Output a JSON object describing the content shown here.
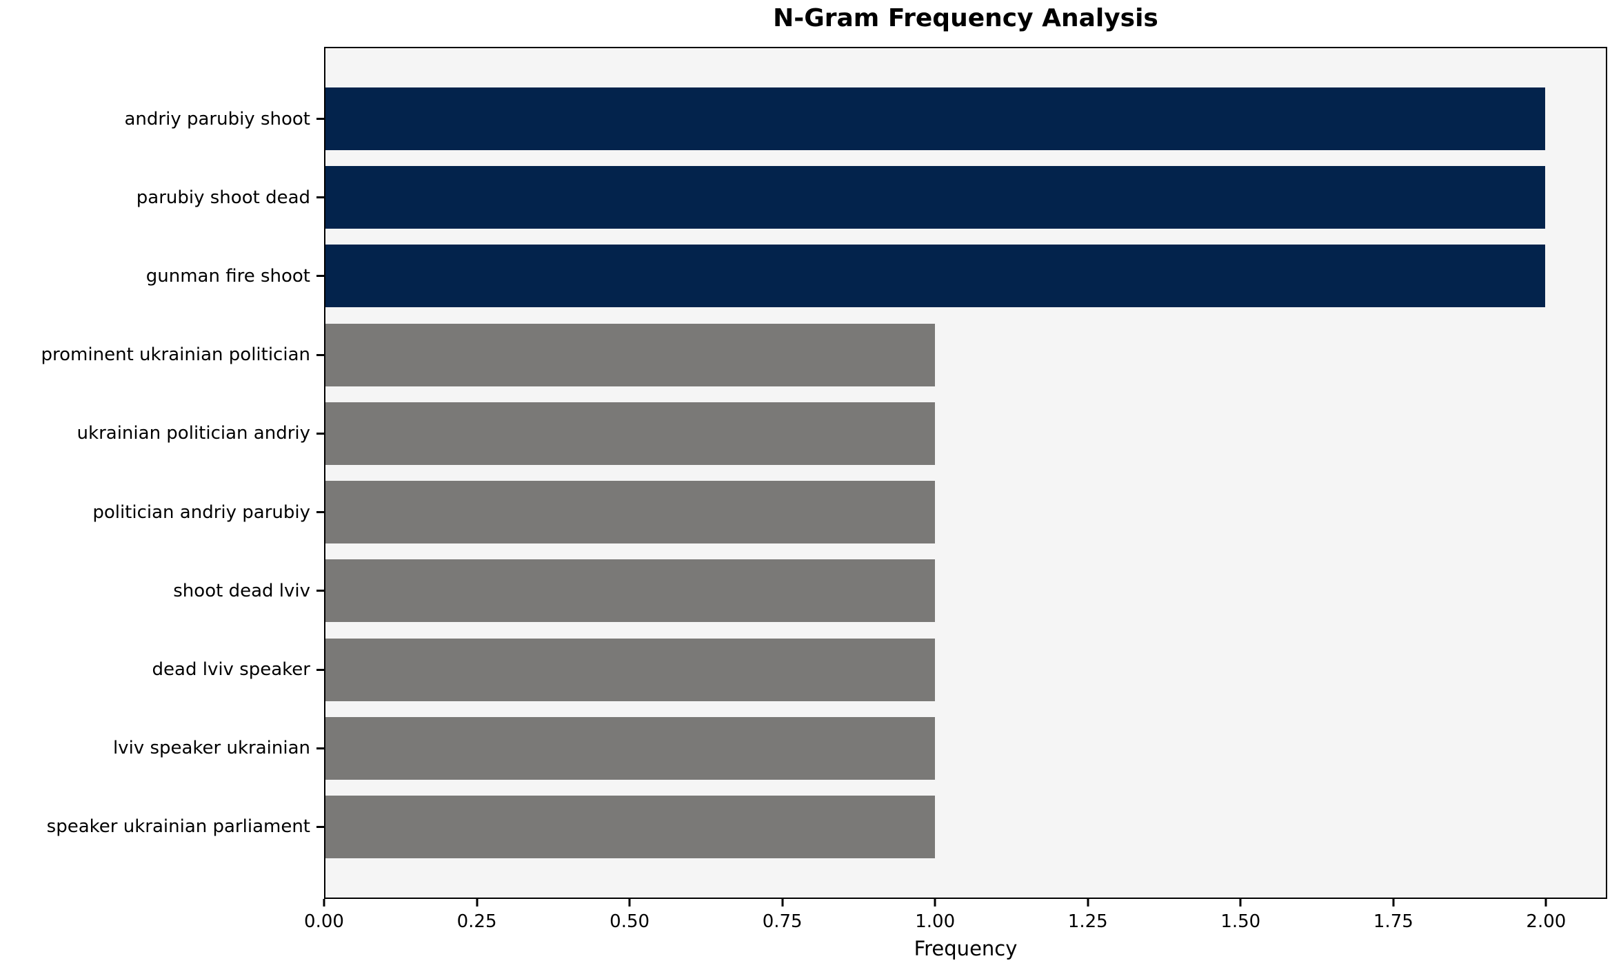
{
  "chart_data": {
    "type": "bar",
    "orientation": "horizontal",
    "title": "N-Gram Frequency Analysis",
    "xlabel": "Frequency",
    "ylabel": "",
    "categories": [
      "andriy parubiy shoot",
      "parubiy shoot dead",
      "gunman fire shoot",
      "prominent ukrainian politician",
      "ukrainian politician andriy",
      "politician andriy parubiy",
      "shoot dead lviv",
      "dead lviv speaker",
      "lviv speaker ukrainian",
      "speaker ukrainian parliament"
    ],
    "values": [
      2,
      2,
      2,
      1,
      1,
      1,
      1,
      1,
      1,
      1
    ],
    "bar_colors": [
      "#03234c",
      "#03234c",
      "#03234c",
      "#7a7977",
      "#7a7977",
      "#7a7977",
      "#7a7977",
      "#7a7977",
      "#7a7977",
      "#7a7977"
    ],
    "xlim": [
      0,
      2.1
    ],
    "xticks": [
      0,
      0.25,
      0.5,
      0.75,
      1.0,
      1.25,
      1.5,
      1.75,
      2.0
    ],
    "xtick_labels": [
      "0.00",
      "0.25",
      "0.50",
      "0.75",
      "1.00",
      "1.25",
      "1.50",
      "1.75",
      "2.00"
    ],
    "grid": false,
    "legend": "none",
    "colors": {
      "highlight_bar": "#03234c",
      "default_bar": "#7a7977",
      "plot_background": "#f5f5f5",
      "figure_background": "#ffffff",
      "axis": "#000000"
    }
  }
}
